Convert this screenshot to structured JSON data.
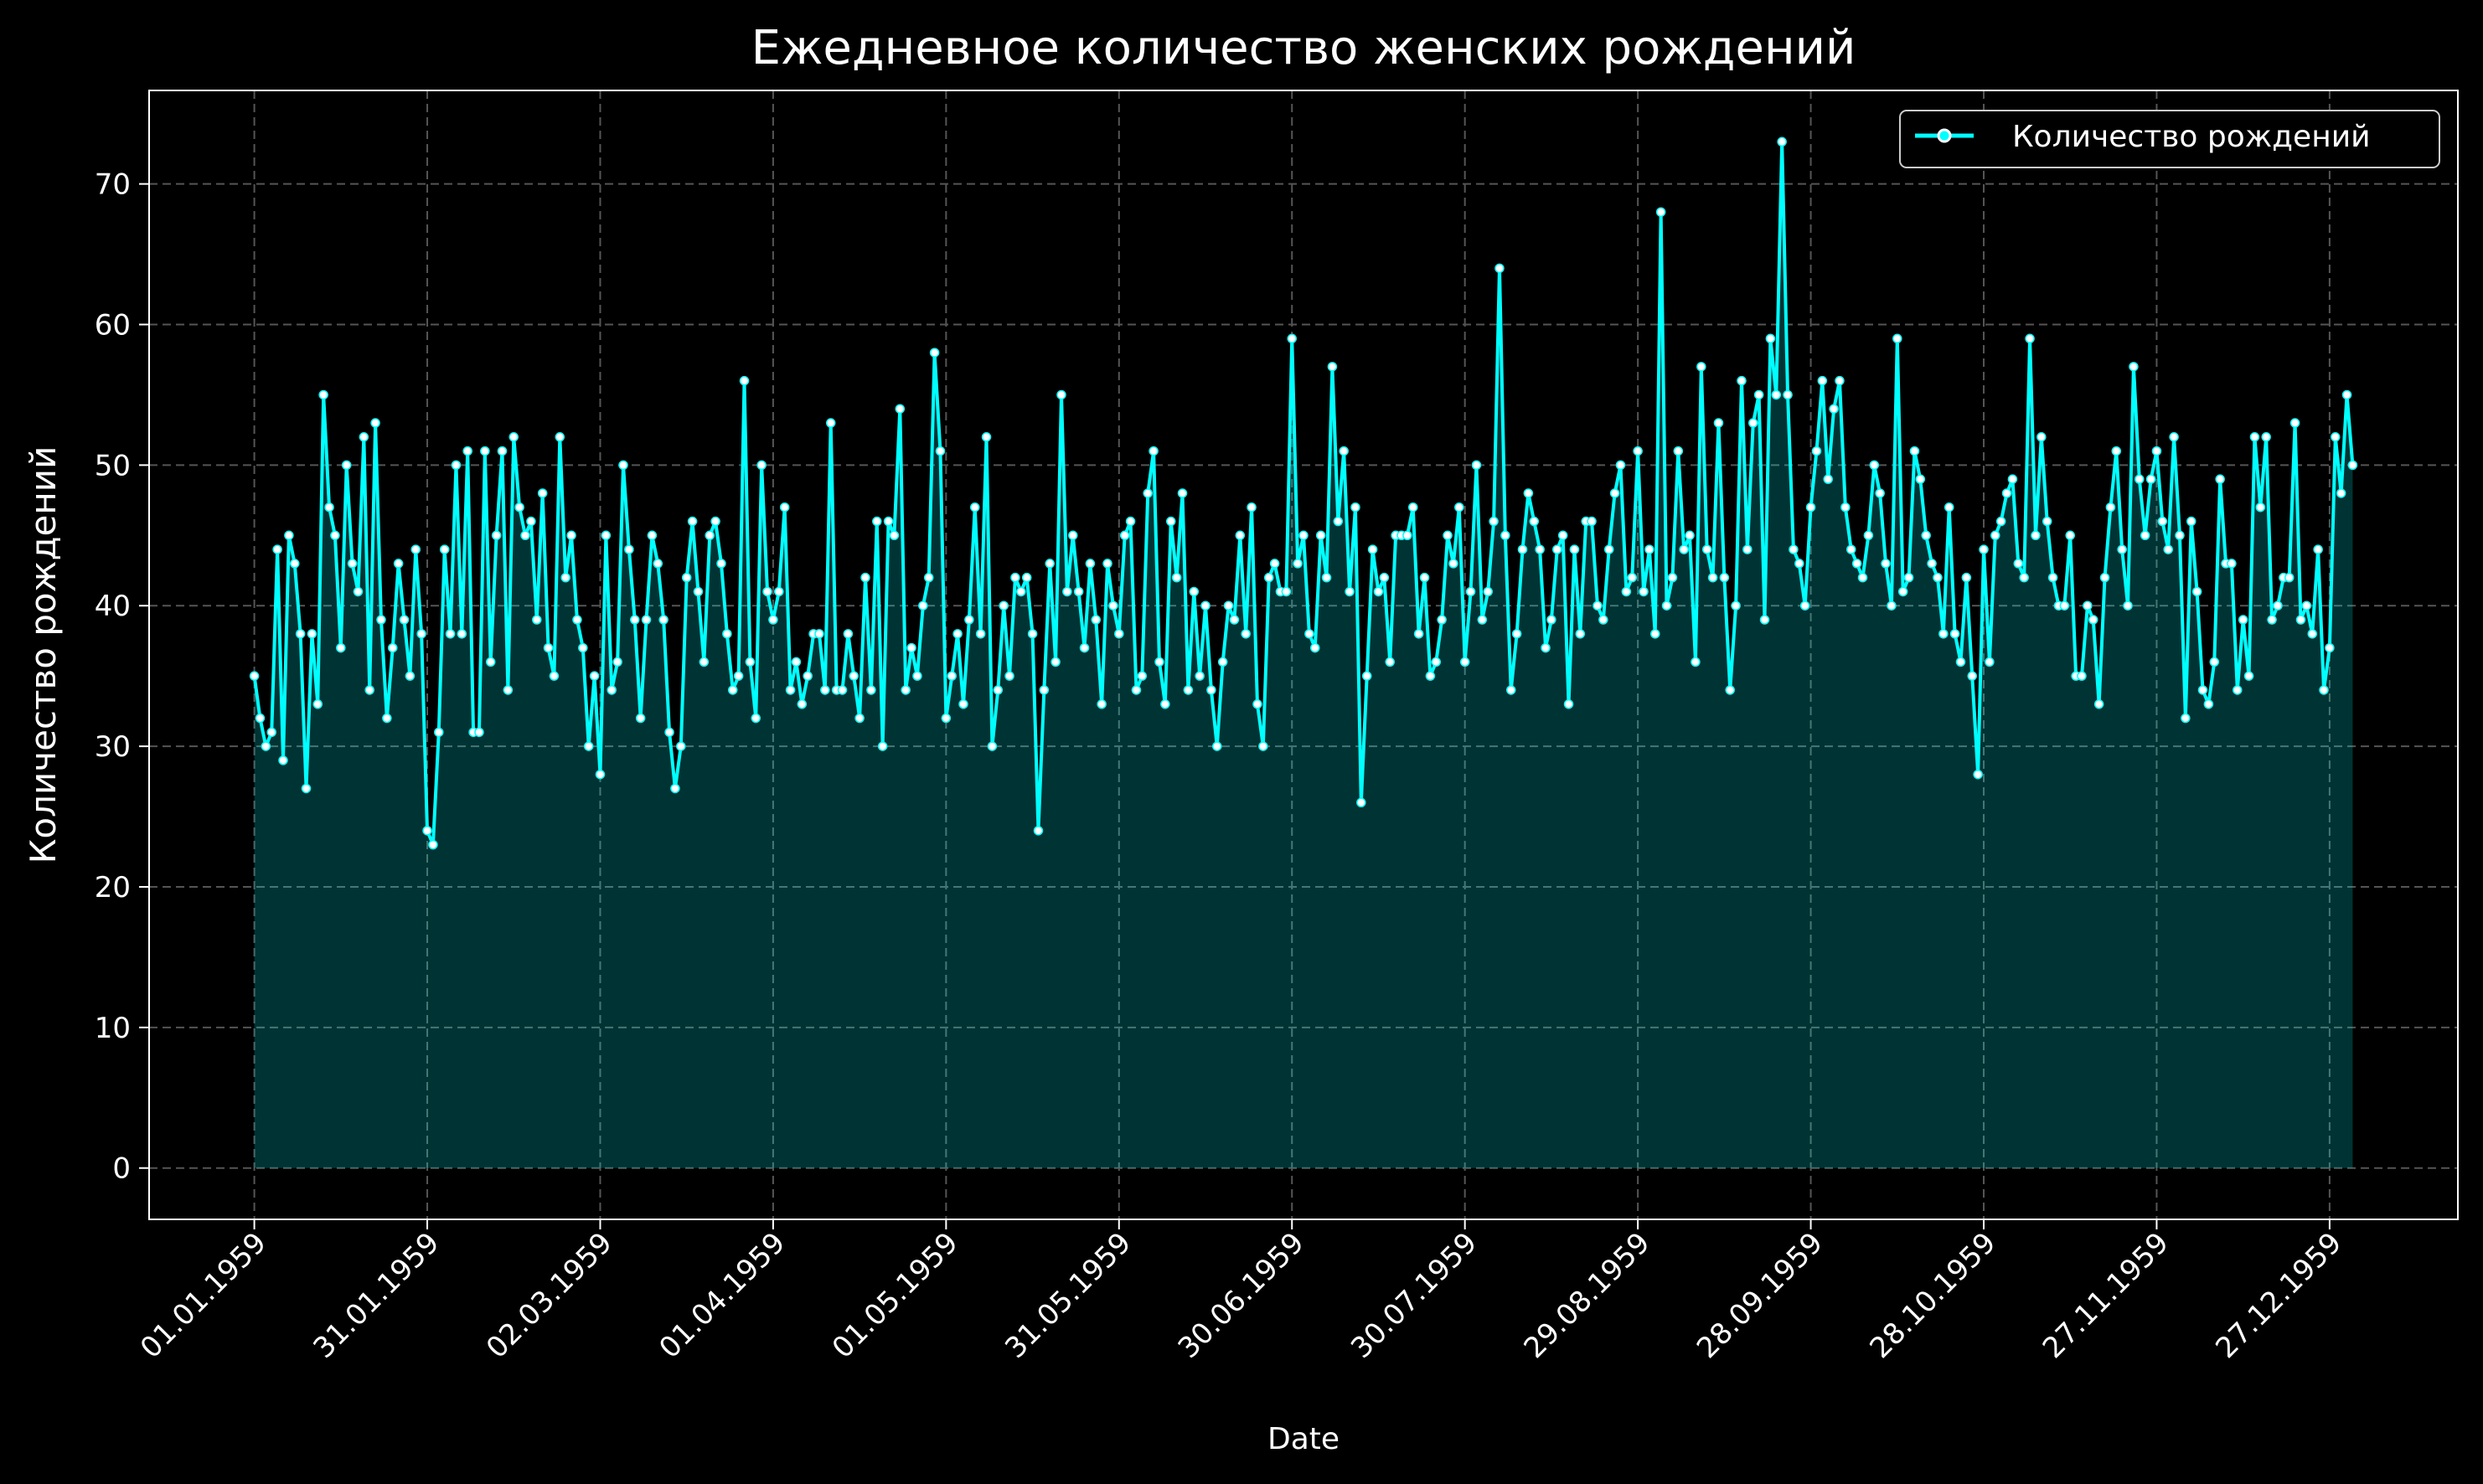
{
  "chart_data": {
    "type": "line",
    "title": "Ежедневное количество женских рождений",
    "xlabel": "Date",
    "ylabel": "Количество рождений",
    "x_tick_labels": [
      "01.01.1959",
      "31.01.1959",
      "02.03.1959",
      "01.04.1959",
      "01.05.1959",
      "31.05.1959",
      "30.06.1959",
      "30.07.1959",
      "29.08.1959",
      "28.09.1959",
      "28.10.1959",
      "27.11.1959",
      "27.12.1959"
    ],
    "y_ticks": [
      0,
      10,
      20,
      30,
      40,
      50,
      60,
      70
    ],
    "ylim": [
      -3.65,
      76.65
    ],
    "xlim_days": [
      -18.25,
      382.25
    ],
    "x_start": "1959-01-01",
    "x_end": "1959-12-31",
    "grid": true,
    "legend_position": "top-right",
    "colors": {
      "background": "#000000",
      "line": "#00ffff",
      "marker": "#ffffff",
      "fill": "#00ffff",
      "grid": "#555555",
      "text": "#ffffff"
    },
    "series": [
      {
        "name": "Количество рождений",
        "values": [
          35,
          32,
          30,
          31,
          44,
          29,
          45,
          43,
          38,
          27,
          38,
          33,
          55,
          47,
          45,
          37,
          50,
          43,
          41,
          52,
          34,
          53,
          39,
          32,
          37,
          43,
          39,
          35,
          44,
          38,
          24,
          23,
          31,
          44,
          38,
          50,
          38,
          51,
          31,
          31,
          51,
          36,
          45,
          51,
          34,
          52,
          47,
          45,
          46,
          39,
          48,
          37,
          35,
          52,
          42,
          45,
          39,
          37,
          30,
          35,
          28,
          45,
          34,
          36,
          50,
          44,
          39,
          32,
          39,
          45,
          43,
          39,
          31,
          27,
          30,
          42,
          46,
          41,
          36,
          45,
          46,
          43,
          38,
          34,
          35,
          56,
          36,
          32,
          50,
          41,
          39,
          41,
          47,
          34,
          36,
          33,
          35,
          38,
          38,
          34,
          53,
          34,
          34,
          38,
          35,
          32,
          42,
          34,
          46,
          30,
          46,
          45,
          54,
          34,
          37,
          35,
          40,
          42,
          58,
          51,
          32,
          35,
          38,
          33,
          39,
          47,
          38,
          52,
          30,
          34,
          40,
          35,
          42,
          41,
          42,
          38,
          24,
          34,
          43,
          36,
          55,
          41,
          45,
          41,
          37,
          43,
          39,
          33,
          43,
          40,
          38,
          45,
          46,
          34,
          35,
          48,
          51,
          36,
          33,
          46,
          42,
          48,
          34,
          41,
          35,
          40,
          34,
          30,
          36,
          40,
          39,
          45,
          38,
          47,
          33,
          30,
          42,
          43,
          41,
          41,
          59,
          43,
          45,
          38,
          37,
          45,
          42,
          57,
          46,
          51,
          41,
          47,
          26,
          35,
          44,
          41,
          42,
          36,
          45,
          45,
          45,
          47,
          38,
          42,
          35,
          36,
          39,
          45,
          43,
          47,
          36,
          41,
          50,
          39,
          41,
          46,
          64,
          45,
          34,
          38,
          44,
          48,
          46,
          44,
          37,
          39,
          44,
          45,
          33,
          44,
          38,
          46,
          46,
          40,
          39,
          44,
          48,
          50,
          41,
          42,
          51,
          41,
          44,
          38,
          68,
          40,
          42,
          51,
          44,
          45,
          36,
          57,
          44,
          42,
          53,
          42,
          34,
          40,
          56,
          44,
          53,
          55,
          39,
          59,
          55,
          73,
          55,
          44,
          43,
          40,
          47,
          51,
          56,
          49,
          54,
          56,
          47,
          44,
          43,
          42,
          45,
          50,
          48,
          43,
          40,
          59,
          41,
          42,
          51,
          49,
          45,
          43,
          42,
          38,
          47,
          38,
          36,
          42,
          35,
          28,
          44,
          36,
          45,
          46,
          48,
          49,
          43,
          42,
          59,
          45,
          52,
          46,
          42,
          40,
          40,
          45,
          35,
          35,
          40,
          39,
          33,
          42,
          47,
          51,
          44,
          40,
          57,
          49,
          45,
          49,
          51,
          46,
          44,
          52,
          45,
          32,
          46,
          41,
          34,
          33,
          36,
          49,
          43,
          43,
          34,
          39,
          35,
          52,
          47,
          52,
          39,
          40,
          42,
          42,
          53,
          39,
          40,
          38,
          44,
          34,
          37,
          52,
          48,
          55,
          50
        ]
      }
    ]
  }
}
